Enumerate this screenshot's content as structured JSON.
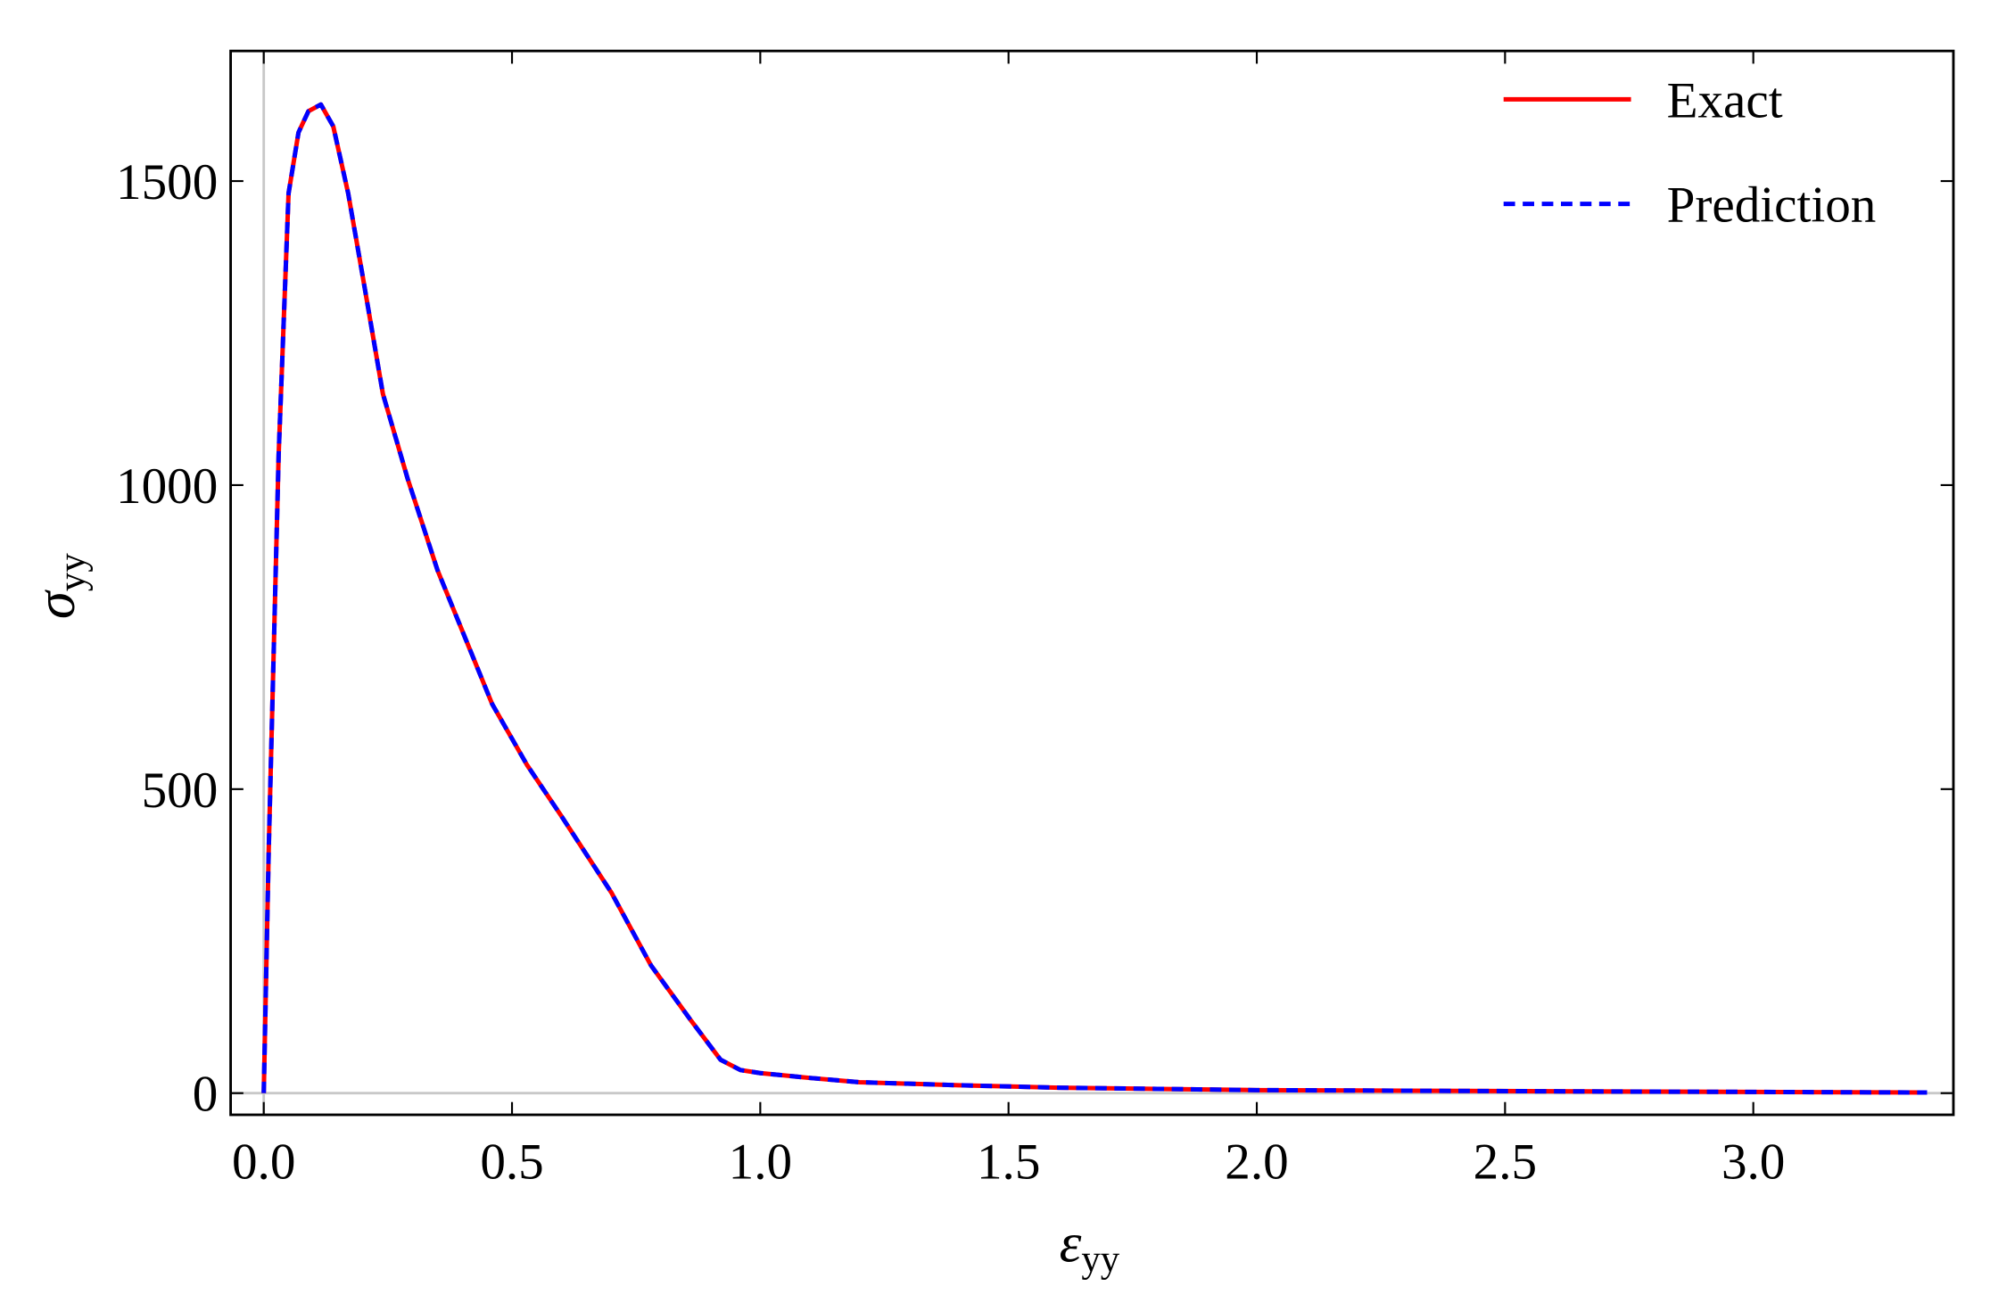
{
  "chart_data": {
    "type": "line",
    "xlabel": {
      "symbol": "ε",
      "subscript": "yy"
    },
    "ylabel": {
      "symbol": "σ",
      "subscript": "yy"
    },
    "xlim": [
      -0.0667,
      3.403
    ],
    "ylim": [
      -35.6,
      1714
    ],
    "xticks": [
      {
        "value": 0,
        "label": "0.0"
      },
      {
        "value": 0.5,
        "label": "0.5"
      },
      {
        "value": 1,
        "label": "1.0"
      },
      {
        "value": 1.5,
        "label": "1.5"
      },
      {
        "value": 2,
        "label": "2.0"
      },
      {
        "value": 2.5,
        "label": "2.5"
      },
      {
        "value": 3,
        "label": "3.0"
      }
    ],
    "yticks": [
      0,
      500,
      1000,
      1500
    ],
    "zero_lines": true,
    "legend": "upper right",
    "x": [
      0,
      0.01,
      0.03,
      0.05,
      0.07,
      0.09,
      0.115,
      0.14,
      0.17,
      0.2,
      0.24,
      0.29,
      0.35,
      0.4,
      0.46,
      0.53,
      0.6,
      0.7,
      0.78,
      0.86,
      0.92,
      0.96,
      1.0,
      1.1,
      1.2,
      1.4,
      1.6,
      1.8,
      2.0,
      2.3,
      2.6,
      3.0,
      3.35
    ],
    "series": [
      {
        "name": "Exact",
        "color": "#ff0000",
        "dashed": false,
        "values": [
          0,
          400,
          1050,
          1480,
          1580,
          1615,
          1626,
          1590,
          1480,
          1340,
          1150,
          1010,
          860,
          760,
          640,
          540,
          455,
          330,
          210,
          120,
          55,
          38,
          33,
          25,
          18,
          13,
          9,
          7,
          5,
          4,
          3,
          2,
          1
        ]
      },
      {
        "name": "Prediction",
        "color": "#0000ff",
        "dashed": true,
        "values": [
          0,
          400,
          1050,
          1480,
          1580,
          1615,
          1626,
          1590,
          1480,
          1340,
          1150,
          1010,
          860,
          760,
          640,
          540,
          455,
          330,
          210,
          120,
          55,
          38,
          33,
          25,
          18,
          13,
          9,
          7,
          5,
          4,
          3,
          2,
          1
        ]
      }
    ]
  }
}
